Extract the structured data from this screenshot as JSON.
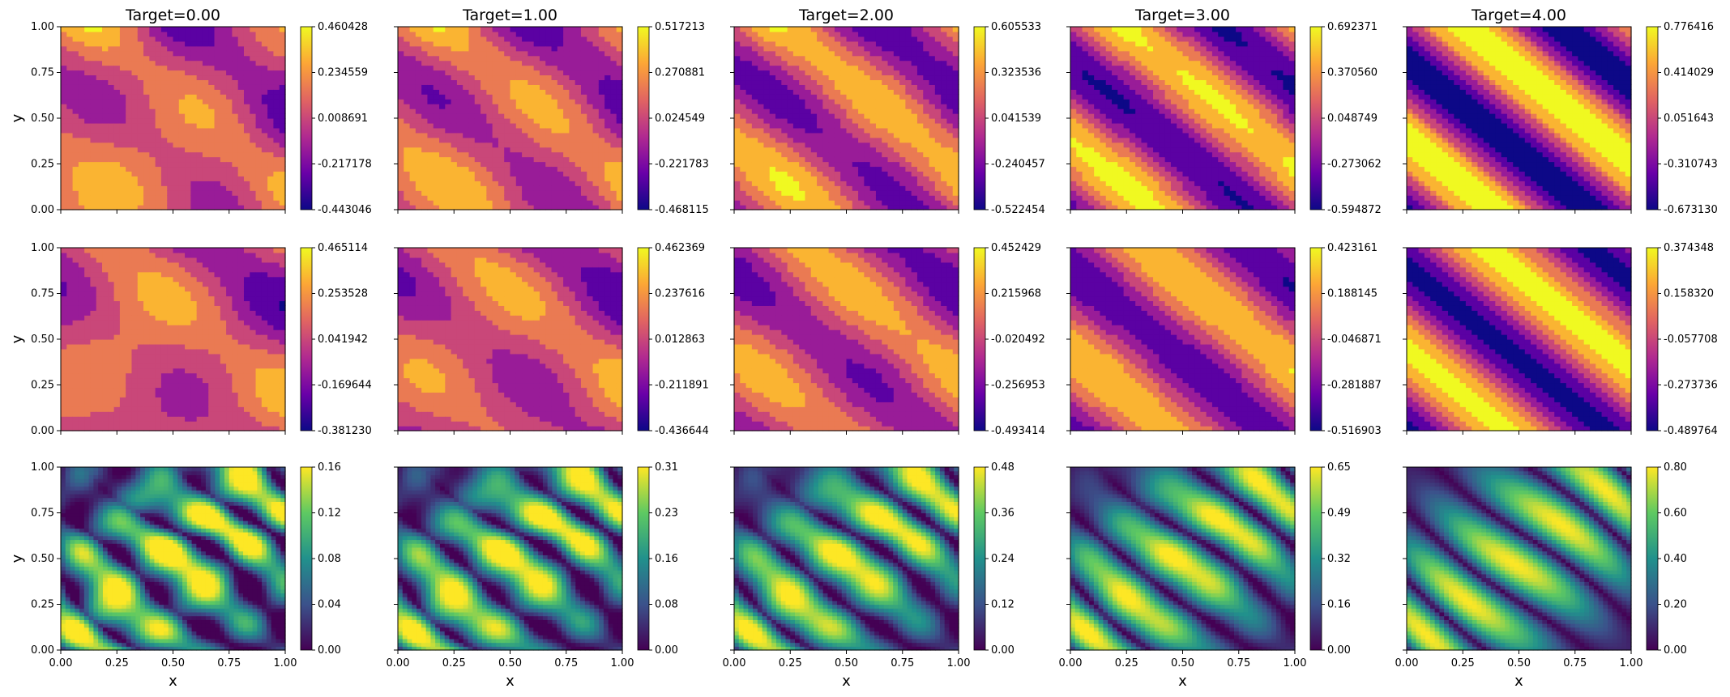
{
  "chart_data": {
    "type": "heatmap",
    "layout": "3 rows x 5 columns of filled-contour / heatmap panels, each with a colorbar",
    "columns": [
      {
        "title": "Target=0.00"
      },
      {
        "title": "Target=1.00"
      },
      {
        "title": "Target=2.00"
      },
      {
        "title": "Target=3.00"
      },
      {
        "title": "Target=4.00"
      }
    ],
    "xlabel": "x",
    "ylabel": "y",
    "xlim": [
      0,
      1
    ],
    "ylim": [
      0,
      1
    ],
    "xticks": [
      "0.00",
      "0.25",
      "0.50",
      "0.75",
      "1.00"
    ],
    "yticks": [
      "0.00",
      "0.25",
      "0.50",
      "0.75",
      "1.00"
    ],
    "rows": [
      {
        "colormap": "plasma",
        "style": "filled-contour",
        "colorbars": [
          [
            "0.460428",
            "0.234559",
            "0.008691",
            "-0.217178",
            "-0.443046"
          ],
          [
            "0.517213",
            "0.270881",
            "0.024549",
            "-0.221783",
            "-0.468115"
          ],
          [
            "0.605533",
            "0.323536",
            "0.041539",
            "-0.240457",
            "-0.522454"
          ],
          [
            "0.692371",
            "0.370560",
            "0.048749",
            "-0.273062",
            "-0.594872"
          ],
          [
            "0.776416",
            "0.414029",
            "0.051643",
            "-0.310743",
            "-0.673130"
          ]
        ]
      },
      {
        "colormap": "plasma",
        "style": "filled-contour",
        "colorbars": [
          [
            "0.465114",
            "0.253528",
            "0.041942",
            "-0.169644",
            "-0.381230"
          ],
          [
            "0.462369",
            "0.237616",
            "0.012863",
            "-0.211891",
            "-0.436644"
          ],
          [
            "0.452429",
            "0.215968",
            "-0.020492",
            "-0.256953",
            "-0.493414"
          ],
          [
            "0.423161",
            "0.188145",
            "-0.046871",
            "-0.281887",
            "-0.516903"
          ],
          [
            "0.374348",
            "0.158320",
            "-0.057708",
            "-0.273736",
            "-0.489764"
          ]
        ]
      },
      {
        "colormap": "viridis",
        "style": "pixel-heatmap",
        "colorbars": [
          [
            "0.16",
            "0.12",
            "0.08",
            "0.04",
            "0.00"
          ],
          [
            "0.31",
            "0.23",
            "0.16",
            "0.08",
            "0.00"
          ],
          [
            "0.48",
            "0.36",
            "0.24",
            "0.12",
            "0.00"
          ],
          [
            "0.65",
            "0.49",
            "0.32",
            "0.16",
            "0.00"
          ],
          [
            "0.80",
            "0.60",
            "0.40",
            "0.20",
            "0.00"
          ]
        ]
      }
    ],
    "colors": {
      "plasma": [
        "#0d0887",
        "#6a00a8",
        "#b12a90",
        "#e16462",
        "#fca636",
        "#f0f921"
      ],
      "viridis": [
        "#440154",
        "#3b528b",
        "#21918c",
        "#5ec962",
        "#fde725"
      ]
    }
  }
}
